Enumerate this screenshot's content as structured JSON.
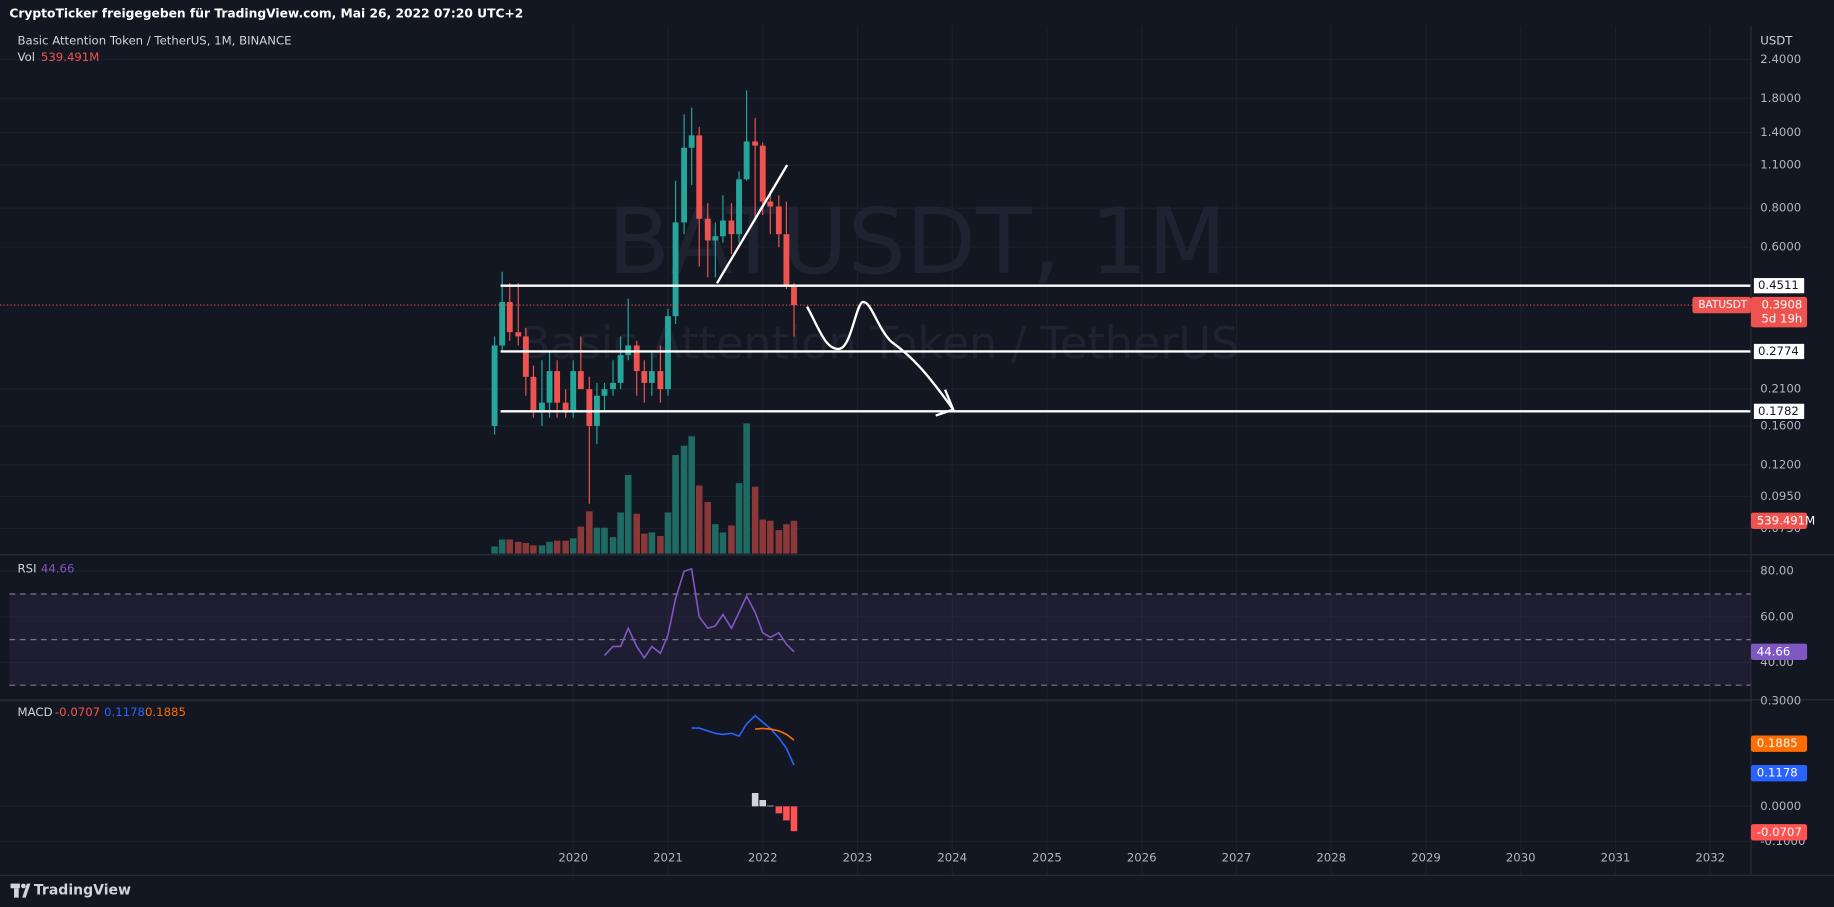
{
  "header": {
    "share_text": "CryptoTicker freigegeben für TradingView.com, Mai 26, 2022 07:20 UTC+2"
  },
  "chart_data": {
    "type": "candlestick",
    "title": "Basic Attention Token / TetherUS, 1M, BINANCE",
    "watermark": "BATUSDT, 1M",
    "watermark_subtitle": "Basic Attention Token / TetherUS",
    "symbol": "BATUSDT",
    "countdown": "5d 19h",
    "y_unit": "USDT",
    "x": [
      2019.17,
      2019.25,
      2019.33,
      2019.42,
      2019.5,
      2019.58,
      2019.67,
      2019.75,
      2019.83,
      2019.92,
      2020,
      2020.08,
      2020.17,
      2020.25,
      2020.33,
      2020.42,
      2020.5,
      2020.58,
      2020.67,
      2020.75,
      2020.83,
      2020.92,
      2021,
      2021.08,
      2021.17,
      2021.25,
      2021.33,
      2021.42,
      2021.5,
      2021.58,
      2021.67,
      2021.75,
      2021.83,
      2021.92,
      2022,
      2022.08,
      2022.17,
      2022.25,
      2022.33
    ],
    "xlim": [
      2013.95,
      2032.43
    ],
    "xticks": [
      2020,
      2021,
      2022,
      2023,
      2024,
      2025,
      2026,
      2027,
      2028,
      2029,
      2030,
      2031,
      2032
    ],
    "log_scale": true,
    "grid": true,
    "ylim": [
      0.0623,
      3.08
    ],
    "yticks": [
      {
        "value": 2.4,
        "label": "2.4000"
      },
      {
        "value": 1.8,
        "label": "1.8000"
      },
      {
        "value": 1.4,
        "label": "1.4000"
      },
      {
        "value": 1.1,
        "label": "1.1000"
      },
      {
        "value": 0.8,
        "label": "0.8000"
      },
      {
        "value": 0.6,
        "label": "0.6000"
      },
      {
        "value": 0.21,
        "label": "0.2100"
      },
      {
        "value": 0.16,
        "label": "0.1600"
      },
      {
        "value": 0.12,
        "label": "0.1200"
      },
      {
        "value": 0.095,
        "label": "0.0950"
      },
      {
        "value": 0.075,
        "label": "0.0750"
      }
    ],
    "open": [
      0.16,
      0.29,
      0.4,
      0.32,
      0.31,
      0.23,
      0.18,
      0.19,
      0.24,
      0.19,
      0.18,
      0.24,
      0.21,
      0.16,
      0.2,
      0.21,
      0.22,
      0.27,
      0.29,
      0.24,
      0.22,
      0.24,
      0.21,
      0.36,
      0.72,
      1.25,
      1.37,
      0.74,
      0.63,
      0.65,
      0.73,
      0.66,
      0.99,
      1.31,
      1.27,
      0.84,
      0.81,
      0.66,
      0.45
    ],
    "high": [
      0.31,
      0.5,
      0.46,
      0.46,
      0.33,
      0.25,
      0.26,
      0.28,
      0.26,
      0.21,
      0.26,
      0.31,
      0.23,
      0.22,
      0.22,
      0.26,
      0.31,
      0.41,
      0.3,
      0.26,
      0.28,
      0.29,
      0.38,
      0.98,
      1.6,
      1.68,
      1.46,
      0.83,
      0.72,
      0.88,
      0.83,
      1.05,
      1.91,
      1.56,
      1.3,
      0.91,
      0.88,
      0.84,
      0.46
    ],
    "low": [
      0.15,
      0.28,
      0.3,
      0.29,
      0.2,
      0.17,
      0.16,
      0.17,
      0.17,
      0.17,
      0.17,
      0.21,
      0.09,
      0.14,
      0.18,
      0.2,
      0.21,
      0.26,
      0.2,
      0.19,
      0.2,
      0.19,
      0.2,
      0.34,
      0.66,
      0.95,
      0.52,
      0.48,
      0.48,
      0.62,
      0.57,
      0.62,
      0.98,
      0.74,
      0.76,
      0.66,
      0.6,
      0.44,
      0.31
    ],
    "close": [
      0.29,
      0.4,
      0.32,
      0.31,
      0.23,
      0.18,
      0.19,
      0.24,
      0.19,
      0.18,
      0.24,
      0.21,
      0.16,
      0.2,
      0.21,
      0.22,
      0.27,
      0.29,
      0.24,
      0.22,
      0.24,
      0.21,
      0.36,
      0.72,
      1.25,
      1.37,
      0.74,
      0.63,
      0.65,
      0.73,
      0.66,
      0.99,
      1.31,
      1.27,
      0.84,
      0.81,
      0.66,
      0.45,
      0.3908
    ],
    "up_color": "#26a69a",
    "down_color": "#ef5350",
    "levels": [
      0.4511,
      0.2774,
      0.1782
    ],
    "level_color": "#ffffff",
    "volume": {
      "name": "Vol",
      "values": [
        116000000,
        232000000,
        232000000,
        193000000,
        174000000,
        135000000,
        135000000,
        193000000,
        212000000,
        212000000,
        251000000,
        444000000,
        695000000,
        425000000,
        425000000,
        270000000,
        676000000,
        1293000000,
        656000000,
        328000000,
        347000000,
        290000000,
        676000000,
        1621000000,
        1776000000,
        1930000000,
        1119000000,
        849000000,
        483000000,
        347000000,
        463000000,
        1158000000,
        2142000000,
        1100000000,
        560000000,
        540000000,
        386000000,
        483000000,
        539491000
      ],
      "last_label": "539.491M",
      "ylim": [
        0,
        8685000000
      ],
      "up_color": "#1f6b64",
      "down_color": "#8a3838"
    },
    "rsi": {
      "name": "RSI",
      "values": [
        null,
        null,
        null,
        null,
        null,
        null,
        null,
        null,
        null,
        null,
        null,
        null,
        null,
        null,
        43,
        47,
        47,
        55,
        47,
        42,
        47,
        44,
        52,
        68,
        80,
        81,
        60,
        55,
        56,
        61,
        55,
        62,
        69,
        62,
        53,
        51,
        53,
        48,
        44.66
      ],
      "color": "#7e57c2",
      "ylim": [
        24.1,
        86.7
      ],
      "yticks": [
        {
          "value": 80,
          "label": "80.00"
        },
        {
          "value": 60,
          "label": "60.00"
        },
        {
          "value": 40,
          "label": "40.00"
        }
      ],
      "band": [
        30,
        70
      ],
      "midline": 50
    },
    "macd": {
      "name": "MACD",
      "macd": [
        null,
        null,
        null,
        null,
        null,
        null,
        null,
        null,
        null,
        null,
        null,
        null,
        null,
        null,
        null,
        null,
        null,
        null,
        null,
        null,
        null,
        null,
        null,
        null,
        null,
        0.223,
        0.223,
        0.215,
        0.208,
        0.205,
        0.208,
        0.2,
        0.235,
        0.258,
        0.24,
        0.222,
        0.195,
        0.165,
        0.1178
      ],
      "signal": [
        null,
        null,
        null,
        null,
        null,
        null,
        null,
        null,
        null,
        null,
        null,
        null,
        null,
        null,
        null,
        null,
        null,
        null,
        null,
        null,
        null,
        null,
        null,
        null,
        null,
        null,
        null,
        null,
        null,
        null,
        null,
        null,
        null,
        0.22,
        0.222,
        0.22,
        0.215,
        0.205,
        0.1885
      ],
      "histogram": [
        null,
        null,
        null,
        null,
        null,
        null,
        null,
        null,
        null,
        null,
        null,
        null,
        null,
        null,
        null,
        null,
        null,
        null,
        null,
        null,
        null,
        null,
        null,
        null,
        null,
        null,
        null,
        null,
        null,
        null,
        null,
        null,
        null,
        0.038,
        0.018,
        0.002,
        -0.02,
        -0.04,
        -0.0707
      ],
      "macd_color": "#2962ff",
      "signal_color": "#ff6d00",
      "hist_pos_color": "#d1d4dc",
      "hist_neg_color": "#ff5252",
      "ylim": [
        -0.1867,
        0.3
      ],
      "yticks": [
        {
          "value": 0.3,
          "label": "0.3000"
        },
        {
          "value": 0,
          "label": "0.0000"
        },
        {
          "value": -0.1,
          "label": "-0.1000"
        }
      ]
    }
  },
  "footer": {
    "brand": "TradingView"
  }
}
